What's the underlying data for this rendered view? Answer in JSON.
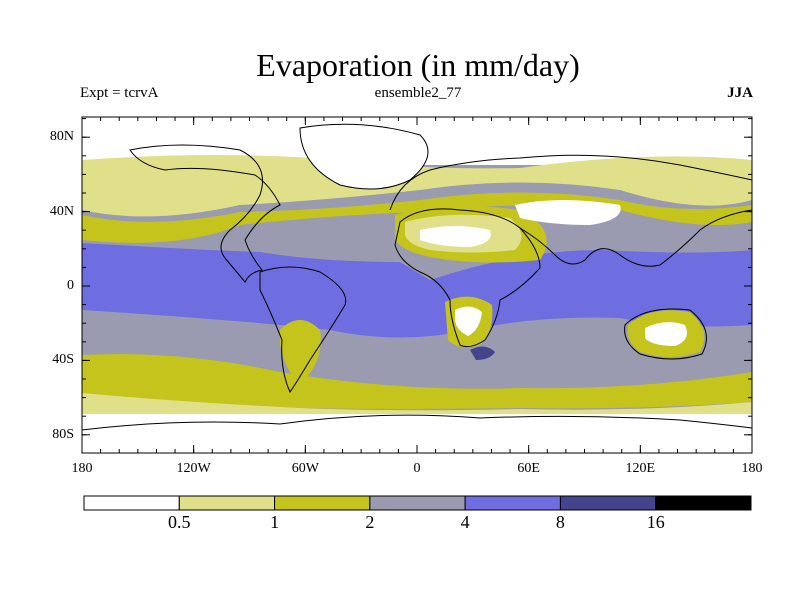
{
  "header": {
    "title": "Evaporation (in mm/day)",
    "experiment": "Expt = tcrvA",
    "ensemble": "ensemble2_77",
    "season": "JJA"
  },
  "axes": {
    "y_ticks": [
      {
        "value": 80,
        "label": "80N"
      },
      {
        "value": 40,
        "label": "40N"
      },
      {
        "value": 0,
        "label": "0"
      },
      {
        "value": -40,
        "label": "40S"
      },
      {
        "value": -80,
        "label": "80S"
      }
    ],
    "x_ticks": [
      {
        "value": -180,
        "label": "180"
      },
      {
        "value": -120,
        "label": "120W"
      },
      {
        "value": -60,
        "label": "60W"
      },
      {
        "value": 0,
        "label": "0"
      },
      {
        "value": 60,
        "label": "60E"
      },
      {
        "value": 120,
        "label": "120E"
      },
      {
        "value": 180,
        "label": "180"
      }
    ]
  },
  "colorbar": {
    "levels": [
      "0.5",
      "1",
      "2",
      "4",
      "8",
      "16"
    ],
    "colors": [
      "#ffffff",
      "#e0e08a",
      "#c4c41c",
      "#9a9ab0",
      "#6e6ee0",
      "#44448c",
      "#000000"
    ]
  },
  "map_colors": {
    "white": "#ffffff",
    "light_yellow": "#e0e08a",
    "olive": "#c4c41c",
    "gray": "#9a9ab0",
    "blue": "#6e6ee0",
    "dark_blue": "#44448c"
  }
}
